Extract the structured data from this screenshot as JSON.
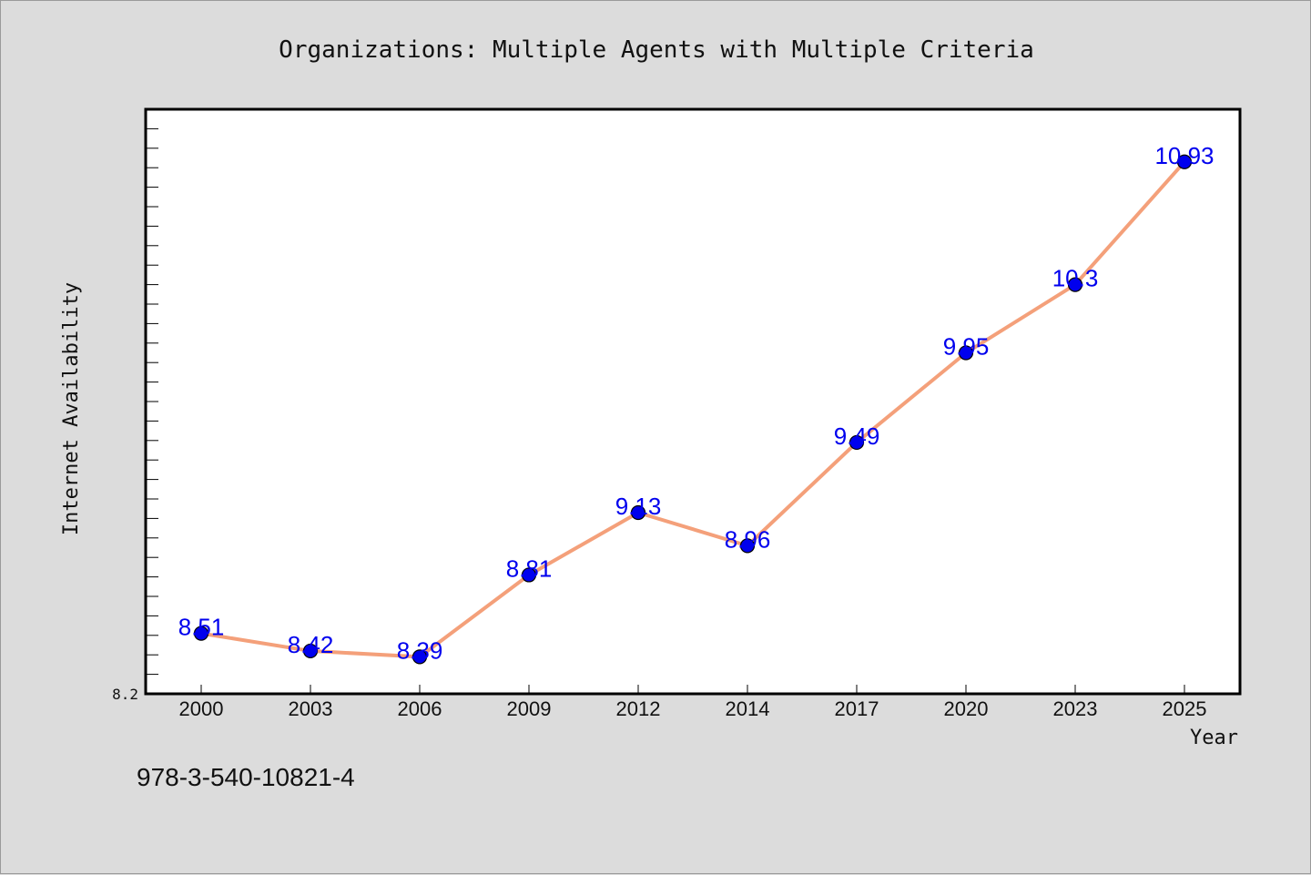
{
  "chart_data": {
    "type": "line",
    "title": "Organizations: Multiple Agents with Multiple Criteria",
    "xlabel": "Year",
    "ylabel": "Internet Availability",
    "categories": [
      "2000",
      "2003",
      "2006",
      "2009",
      "2012",
      "2014",
      "2017",
      "2020",
      "2023",
      "2025"
    ],
    "series": [
      {
        "values": [
          8.51,
          8.42,
          8.39,
          8.81,
          9.13,
          8.96,
          9.49,
          9.95,
          10.3,
          10.93
        ],
        "labels": [
          "8.51",
          "8.42",
          "8.39",
          "8.81",
          "9.13",
          "8.96",
          "9.49",
          "9.95",
          "10.3",
          "10.93"
        ],
        "line_color": "#f4a07a",
        "marker_color": "#0000ee"
      }
    ],
    "ylim": [
      8.2,
      11.2
    ],
    "y_tick_labels": [
      "8.2"
    ],
    "grid": false
  },
  "footnote": "978-3-540-10821-4"
}
